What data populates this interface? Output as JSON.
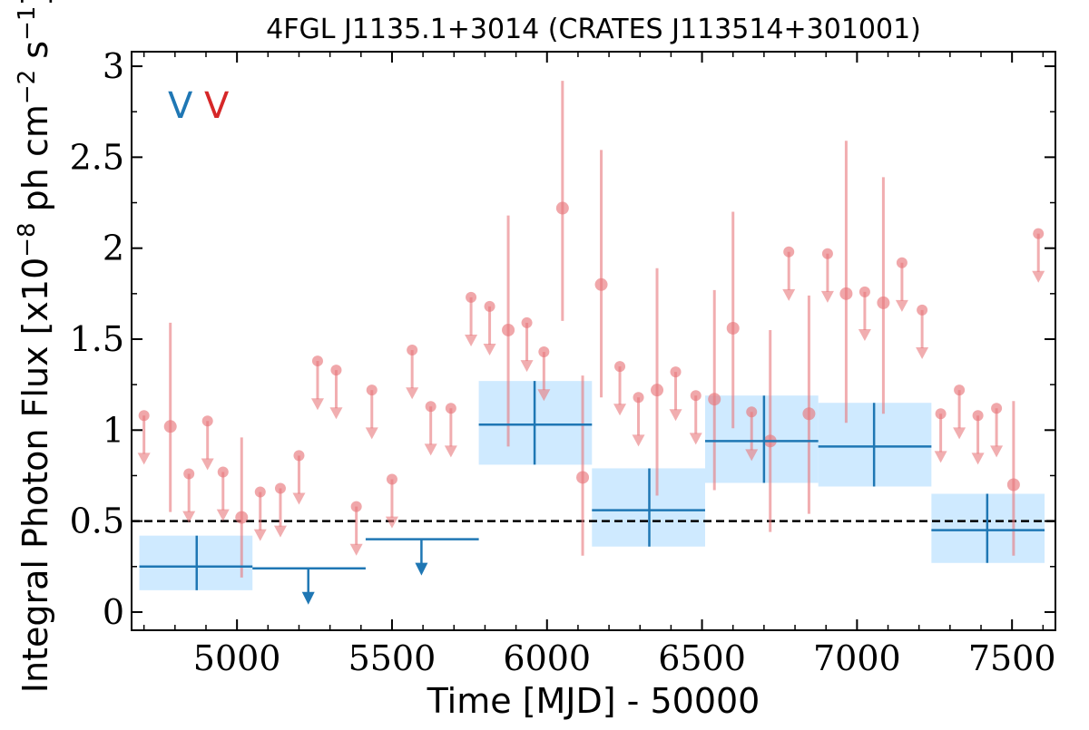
{
  "colors": {
    "background": "#ffffff",
    "weekly_points": "#e8787c",
    "yearly_line": "#1f77b4",
    "yearly_band": "#cfeaff",
    "reference_line": "#000000",
    "legend_left": "#1f77b4",
    "legend_right": "#d62728"
  },
  "chart_data": {
    "type": "scatter",
    "title": "4FGL J1135.1+3014 (CRATES J113514+301001)",
    "xlabel": "Time [MJD] - 50000",
    "ylabel_parts": {
      "pre": "Integral Photon Flux [x10",
      "exp1": "−8",
      "mid": " ph cm",
      "exp2": "−2",
      "mid2": " s",
      "exp3": "−1",
      "post": "]"
    },
    "xlim": [
      4660,
      7640
    ],
    "ylim": [
      -0.1,
      3.08
    ],
    "xticks": [
      5000,
      5500,
      6000,
      6500,
      7000,
      7500
    ],
    "xtick_labels": [
      "5000",
      "5500",
      "6000",
      "6500",
      "7000",
      "7500"
    ],
    "yticks": [
      0,
      0.5,
      1,
      1.5,
      2,
      2.5,
      3
    ],
    "ytick_labels": [
      "0",
      "0.5",
      "1",
      "1.5",
      "2",
      "2.5",
      "3"
    ],
    "reference_line": 0.5,
    "legend": [
      {
        "glyph": "V"
      },
      {
        "glyph": "V"
      }
    ],
    "legend_placement": "top-left",
    "grid": false,
    "weekly_detections": [
      {
        "x": 4785,
        "y": 1.02,
        "lo": 0.55,
        "hi": 1.59
      },
      {
        "x": 5015,
        "y": 0.52,
        "lo": 0.19,
        "hi": 0.96
      },
      {
        "x": 5875,
        "y": 1.55,
        "lo": 0.91,
        "hi": 2.18
      },
      {
        "x": 6050,
        "y": 2.22,
        "lo": 1.6,
        "hi": 2.92
      },
      {
        "x": 6115,
        "y": 0.74,
        "lo": 0.31,
        "hi": 1.3
      },
      {
        "x": 6175,
        "y": 1.8,
        "lo": 1.18,
        "hi": 2.54
      },
      {
        "x": 6355,
        "y": 1.22,
        "lo": 0.64,
        "hi": 1.89
      },
      {
        "x": 6540,
        "y": 1.17,
        "lo": 0.67,
        "hi": 1.77
      },
      {
        "x": 6600,
        "y": 1.56,
        "lo": 1.01,
        "hi": 2.2
      },
      {
        "x": 6720,
        "y": 0.94,
        "lo": 0.44,
        "hi": 1.55
      },
      {
        "x": 6845,
        "y": 1.09,
        "lo": 0.54,
        "hi": 1.74
      },
      {
        "x": 6965,
        "y": 1.75,
        "lo": 1.04,
        "hi": 2.59
      },
      {
        "x": 7085,
        "y": 1.7,
        "lo": 1.09,
        "hi": 2.39
      },
      {
        "x": 7505,
        "y": 0.7,
        "lo": 0.31,
        "hi": 1.16
      }
    ],
    "weekly_upper_limits": [
      {
        "x": 4700,
        "y": 1.08
      },
      {
        "x": 4845,
        "y": 0.76
      },
      {
        "x": 4905,
        "y": 1.05
      },
      {
        "x": 4955,
        "y": 0.77
      },
      {
        "x": 5075,
        "y": 0.66
      },
      {
        "x": 5140,
        "y": 0.68
      },
      {
        "x": 5200,
        "y": 0.86
      },
      {
        "x": 5260,
        "y": 1.38
      },
      {
        "x": 5320,
        "y": 1.33
      },
      {
        "x": 5385,
        "y": 0.58
      },
      {
        "x": 5435,
        "y": 1.22
      },
      {
        "x": 5500,
        "y": 0.73
      },
      {
        "x": 5565,
        "y": 1.44
      },
      {
        "x": 5625,
        "y": 1.13
      },
      {
        "x": 5690,
        "y": 1.12
      },
      {
        "x": 5755,
        "y": 1.73
      },
      {
        "x": 5815,
        "y": 1.68
      },
      {
        "x": 5935,
        "y": 1.59
      },
      {
        "x": 5990,
        "y": 1.43
      },
      {
        "x": 6235,
        "y": 1.35
      },
      {
        "x": 6295,
        "y": 1.18
      },
      {
        "x": 6415,
        "y": 1.32
      },
      {
        "x": 6480,
        "y": 1.19
      },
      {
        "x": 6660,
        "y": 1.1
      },
      {
        "x": 6780,
        "y": 1.98
      },
      {
        "x": 6905,
        "y": 1.97
      },
      {
        "x": 7025,
        "y": 1.76
      },
      {
        "x": 7145,
        "y": 1.92
      },
      {
        "x": 7210,
        "y": 1.66
      },
      {
        "x": 7270,
        "y": 1.09
      },
      {
        "x": 7330,
        "y": 1.22
      },
      {
        "x": 7390,
        "y": 1.08
      },
      {
        "x": 7450,
        "y": 1.12
      },
      {
        "x": 7585,
        "y": 2.08
      }
    ],
    "yearly_detections": [
      {
        "x0": 4685,
        "x1": 5050,
        "y": 0.25,
        "lo": 0.12,
        "hi": 0.42,
        "xc": 4870
      },
      {
        "x0": 5780,
        "x1": 6145,
        "y": 1.03,
        "lo": 0.81,
        "hi": 1.27,
        "xc": 5960
      },
      {
        "x0": 6145,
        "x1": 6510,
        "y": 0.56,
        "lo": 0.36,
        "hi": 0.79,
        "xc": 6330
      },
      {
        "x0": 6510,
        "x1": 6875,
        "y": 0.94,
        "lo": 0.71,
        "hi": 1.19,
        "xc": 6700
      },
      {
        "x0": 6875,
        "x1": 7240,
        "y": 0.91,
        "lo": 0.69,
        "hi": 1.15,
        "xc": 7055
      },
      {
        "x0": 7240,
        "x1": 7605,
        "y": 0.45,
        "lo": 0.27,
        "hi": 0.65,
        "xc": 7420
      }
    ],
    "yearly_upper_limits": [
      {
        "x0": 5050,
        "x1": 5415,
        "y": 0.24,
        "xc": 5230
      },
      {
        "x0": 5415,
        "x1": 5780,
        "y": 0.4,
        "xc": 5595
      }
    ]
  }
}
